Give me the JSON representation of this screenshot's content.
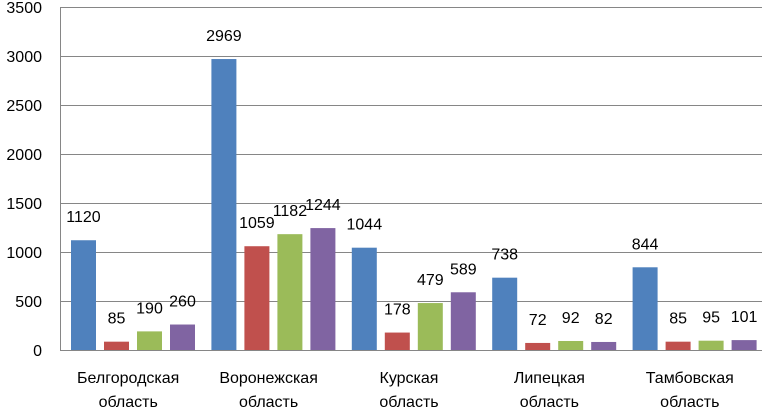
{
  "chart_data": {
    "type": "bar",
    "title": "",
    "xlabel": "",
    "ylabel": "",
    "ylim": [
      0,
      3500
    ],
    "yticks": [
      0,
      500,
      1000,
      1500,
      2000,
      2500,
      3000,
      3500
    ],
    "grid": true,
    "legend": "none",
    "categories": [
      [
        "Белгородская",
        "область"
      ],
      [
        "Воронежская",
        "область"
      ],
      [
        "Курская",
        "область"
      ],
      [
        "Липецкая",
        "область"
      ],
      [
        "Тамбовская",
        "область"
      ]
    ],
    "series": [
      {
        "color": "#4F81BD",
        "values": [
          1120,
          2969,
          1044,
          738,
          844
        ]
      },
      {
        "color": "#C0504D",
        "values": [
          85,
          1059,
          178,
          72,
          85
        ]
      },
      {
        "color": "#9BBB59",
        "values": [
          190,
          1182,
          479,
          92,
          95
        ]
      },
      {
        "color": "#8064A2",
        "values": [
          260,
          1244,
          589,
          82,
          101
        ]
      }
    ]
  }
}
